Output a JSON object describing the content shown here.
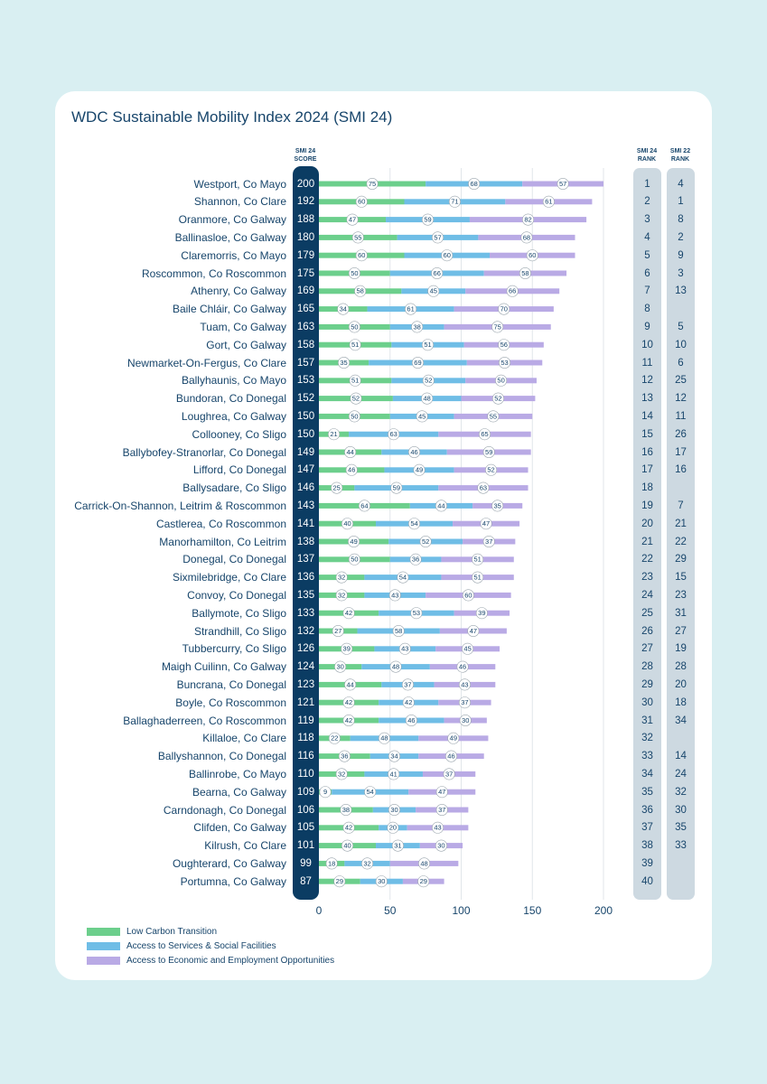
{
  "chart_data": {
    "type": "bar",
    "stacked": true,
    "orientation": "horizontal",
    "title": "WDC Sustainable Mobility Index 2024 (SMI 24)",
    "score_header": "SMI 24 SCORE",
    "rank24_header": "SMI 24 RANK",
    "rank22_header": "SMI 22 RANK",
    "xlim": [
      0,
      210
    ],
    "xticks": [
      0,
      50,
      100,
      150,
      200
    ],
    "series": [
      {
        "name": "Low Carbon Transition",
        "color": "#6ccf8c"
      },
      {
        "name": "Access to Services & Social Facilities",
        "color": "#6fbde6"
      },
      {
        "name": "Access to Economic and Employment Opportunities",
        "color": "#b9aae5"
      }
    ],
    "rows": [
      {
        "name": "Westport, Co Mayo",
        "score": "200",
        "values": [
          75,
          68,
          57
        ],
        "rank24": "1",
        "rank22": "4"
      },
      {
        "name": "Shannon, Co Clare",
        "score": "192",
        "values": [
          60,
          71,
          61
        ],
        "rank24": "2",
        "rank22": "1"
      },
      {
        "name": "Oranmore, Co Galway",
        "score": "188",
        "values": [
          47,
          59,
          82
        ],
        "rank24": "3",
        "rank22": "8"
      },
      {
        "name": "Ballinasloe, Co Galway",
        "score": "180",
        "values": [
          55,
          57,
          68
        ],
        "rank24": "4",
        "rank22": "2"
      },
      {
        "name": "Claremorris, Co Mayo",
        "score": "179",
        "values": [
          60,
          60,
          60
        ],
        "rank24": "5",
        "rank22": "9"
      },
      {
        "name": "Roscommon, Co Roscommon",
        "score": "175",
        "values": [
          50,
          66,
          58
        ],
        "rank24": "6",
        "rank22": "3"
      },
      {
        "name": "Athenry, Co Galway",
        "score": "169",
        "values": [
          58,
          45,
          66
        ],
        "rank24": "7",
        "rank22": "13"
      },
      {
        "name": "Baile Chláir, Co Galway",
        "score": "165",
        "values": [
          34,
          61,
          70
        ],
        "rank24": "8",
        "rank22": ""
      },
      {
        "name": "Tuam, Co Galway",
        "score": "163",
        "values": [
          50,
          38,
          75
        ],
        "rank24": "9",
        "rank22": "5"
      },
      {
        "name": "Gort, Co Galway",
        "score": "158",
        "values": [
          51,
          51,
          56
        ],
        "rank24": "10",
        "rank22": "10"
      },
      {
        "name": "Newmarket-On-Fergus, Co Clare",
        "score": "157",
        "values": [
          35,
          69,
          53
        ],
        "rank24": "11",
        "rank22": "6"
      },
      {
        "name": "Ballyhaunis, Co Mayo",
        "score": "153",
        "values": [
          51,
          52,
          50
        ],
        "rank24": "12",
        "rank22": "25"
      },
      {
        "name": "Bundoran, Co Donegal",
        "score": "152",
        "values": [
          52,
          48,
          52
        ],
        "rank24": "13",
        "rank22": "12"
      },
      {
        "name": "Loughrea, Co Galway",
        "score": "150",
        "values": [
          50,
          45,
          55
        ],
        "rank24": "14",
        "rank22": "11"
      },
      {
        "name": "Collooney, Co Sligo",
        "score": "150",
        "values": [
          21,
          63,
          65
        ],
        "rank24": "15",
        "rank22": "26"
      },
      {
        "name": "Ballybofey-Stranorlar, Co Donegal",
        "score": "149",
        "values": [
          44,
          46,
          59
        ],
        "rank24": "16",
        "rank22": "17"
      },
      {
        "name": "Lifford, Co Donegal",
        "score": "147",
        "values": [
          46,
          49,
          52
        ],
        "rank24": "17",
        "rank22": "16"
      },
      {
        "name": "Ballysadare, Co Sligo",
        "score": "146",
        "values": [
          25,
          59,
          63
        ],
        "rank24": "18",
        "rank22": ""
      },
      {
        "name": "Carrick-On-Shannon, Leitrim & Roscommon",
        "score": "143",
        "values": [
          64,
          44,
          35
        ],
        "rank24": "19",
        "rank22": "7"
      },
      {
        "name": "Castlerea, Co Roscommon",
        "score": "141",
        "values": [
          40,
          54,
          47
        ],
        "rank24": "20",
        "rank22": "21"
      },
      {
        "name": "Manorhamilton, Co Leitrim",
        "score": "138",
        "values": [
          49,
          52,
          37
        ],
        "rank24": "21",
        "rank22": "22"
      },
      {
        "name": "Donegal, Co Donegal",
        "score": "137",
        "values": [
          50,
          36,
          51
        ],
        "rank24": "22",
        "rank22": "29"
      },
      {
        "name": "Sixmilebridge, Co Clare",
        "score": "136",
        "values": [
          32,
          54,
          51
        ],
        "rank24": "23",
        "rank22": "15"
      },
      {
        "name": "Convoy, Co Donegal",
        "score": "135",
        "values": [
          32,
          43,
          60
        ],
        "rank24": "24",
        "rank22": "23"
      },
      {
        "name": "Ballymote, Co Sligo",
        "score": "133",
        "values": [
          42,
          53,
          39
        ],
        "rank24": "25",
        "rank22": "31"
      },
      {
        "name": "Strandhill, Co Sligo",
        "score": "132",
        "values": [
          27,
          58,
          47
        ],
        "rank24": "26",
        "rank22": "27"
      },
      {
        "name": "Tubbercurry, Co Sligo",
        "score": "126",
        "values": [
          39,
          43,
          45
        ],
        "rank24": "27",
        "rank22": "19"
      },
      {
        "name": "Maigh Cuilinn, Co Galway",
        "score": "124",
        "values": [
          30,
          48,
          46
        ],
        "rank24": "28",
        "rank22": "28"
      },
      {
        "name": "Buncrana, Co Donegal",
        "score": "123",
        "values": [
          44,
          37,
          43
        ],
        "rank24": "29",
        "rank22": "20"
      },
      {
        "name": "Boyle, Co Roscommon",
        "score": "121",
        "values": [
          42,
          42,
          37
        ],
        "rank24": "30",
        "rank22": "18"
      },
      {
        "name": "Ballaghaderreen, Co Roscommon",
        "score": "119",
        "values": [
          42,
          46,
          30
        ],
        "rank24": "31",
        "rank22": "34"
      },
      {
        "name": "Killaloe, Co Clare",
        "score": "118",
        "values": [
          22,
          48,
          49
        ],
        "rank24": "32",
        "rank22": ""
      },
      {
        "name": "Ballyshannon, Co Donegal",
        "score": "116",
        "values": [
          36,
          34,
          46
        ],
        "rank24": "33",
        "rank22": "14"
      },
      {
        "name": "Ballinrobe, Co Mayo",
        "score": "110",
        "values": [
          32,
          41,
          37
        ],
        "rank24": "34",
        "rank22": "24"
      },
      {
        "name": "Bearna, Co Galway",
        "score": "109",
        "values": [
          9,
          54,
          47
        ],
        "rank24": "35",
        "rank22": "32"
      },
      {
        "name": "Carndonagh, Co Donegal",
        "score": "106",
        "values": [
          38,
          30,
          37
        ],
        "rank24": "36",
        "rank22": "30"
      },
      {
        "name": "Clifden, Co Galway",
        "score": "105",
        "values": [
          42,
          20,
          43
        ],
        "rank24": "37",
        "rank22": "35"
      },
      {
        "name": "Kilrush, Co Clare",
        "score": "101",
        "values": [
          40,
          31,
          30
        ],
        "rank24": "38",
        "rank22": "33"
      },
      {
        "name": "Oughterard, Co Galway",
        "score": "99",
        "values": [
          18,
          32,
          48
        ],
        "rank24": "39",
        "rank22": ""
      },
      {
        "name": "Portumna, Co Galway",
        "score": "87",
        "values": [
          29,
          30,
          29
        ],
        "rank24": "40",
        "rank22": ""
      }
    ]
  }
}
